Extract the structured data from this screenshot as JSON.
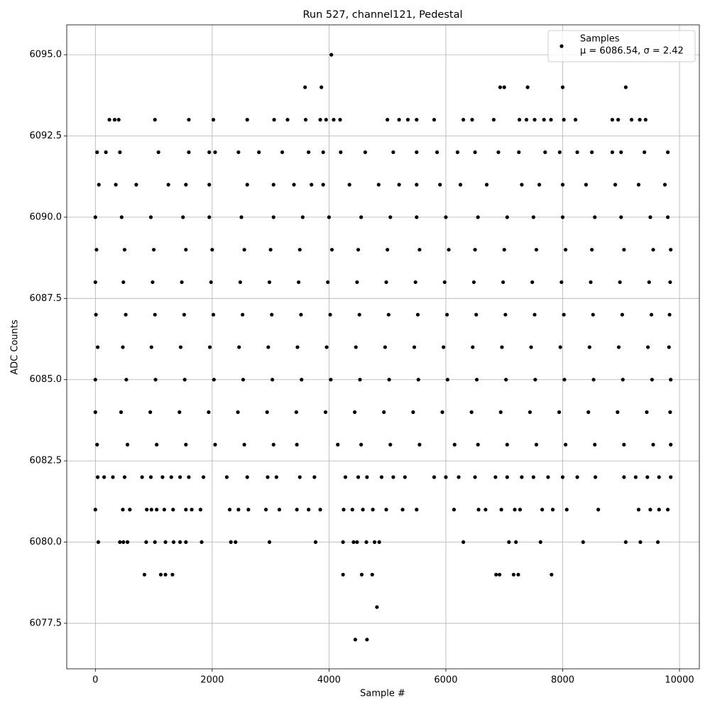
{
  "chart_data": {
    "type": "scatter",
    "title": "Run 527, channel121, Pedestal",
    "x_label": "Sample #",
    "y_label": "ADC Counts",
    "xlim": [
      -490,
      10340
    ],
    "ylim": [
      6076.1,
      6095.92
    ],
    "xticks": [
      0,
      2000,
      4000,
      6000,
      8000,
      10000
    ],
    "yticks": [
      {
        "value": 6077.5,
        "label": "6077.5"
      },
      {
        "value": 6080,
        "label": "6080.0"
      },
      {
        "value": 6082.5,
        "label": "6082.5"
      },
      {
        "value": 6085,
        "label": "6085.0"
      },
      {
        "value": 6087.5,
        "label": "6087.5"
      },
      {
        "value": 6090,
        "label": "6090.0"
      },
      {
        "value": 6092.5,
        "label": "6092.5"
      },
      {
        "value": 6095,
        "label": "6095.0"
      }
    ],
    "grid": true,
    "legend": "upper right",
    "legend_note": "μ = 6086.54, σ = 2.42",
    "series": [
      {
        "name": "Samples",
        "color": "#000000",
        "x": [
          4040,
          3590,
          3870,
          6930,
          7000,
          7400,
          8000,
          9080,
          240,
          330,
          400,
          1020,
          1600,
          2020,
          2600,
          3060,
          3290,
          3600,
          3850,
          3950,
          4080,
          4190,
          5000,
          5200,
          5350,
          5500,
          5800,
          6300,
          6450,
          6820,
          7260,
          7380,
          7520,
          7680,
          7800,
          8020,
          8220,
          8850,
          8950,
          9180,
          9320,
          9420,
          30,
          180,
          420,
          1080,
          1600,
          1950,
          2050,
          2450,
          2800,
          3200,
          3650,
          3900,
          4200,
          4620,
          5100,
          5500,
          5850,
          6200,
          6500,
          6900,
          7250,
          7700,
          7950,
          8250,
          8500,
          8850,
          9000,
          9400,
          9800,
          60,
          350,
          700,
          1250,
          1550,
          1950,
          2600,
          3050,
          3400,
          3700,
          3900,
          4350,
          4850,
          5200,
          5500,
          5900,
          6250,
          6700,
          7300,
          7600,
          8000,
          8400,
          8900,
          9300,
          9750,
          0,
          450,
          950,
          1500,
          1950,
          2500,
          3050,
          3550,
          4000,
          4550,
          5050,
          5500,
          6000,
          6550,
          7050,
          7500,
          8000,
          8550,
          9000,
          9500,
          9800,
          20,
          500,
          1000,
          1550,
          2000,
          2550,
          3000,
          3500,
          4050,
          4500,
          5000,
          5550,
          6050,
          6500,
          7000,
          7550,
          8050,
          8500,
          9050,
          9550,
          9850,
          0,
          480,
          980,
          1480,
          1980,
          2480,
          2980,
          3480,
          3980,
          4480,
          4980,
          5480,
          5980,
          6480,
          6980,
          7480,
          7980,
          8480,
          8980,
          9480,
          9840,
          10,
          520,
          1020,
          1520,
          2020,
          2520,
          3020,
          3520,
          4020,
          4520,
          5020,
          5520,
          6020,
          6520,
          7020,
          7520,
          8020,
          8520,
          9020,
          9520,
          9830,
          40,
          470,
          960,
          1460,
          1960,
          2460,
          2960,
          3460,
          3960,
          4460,
          4960,
          5460,
          5960,
          6460,
          6960,
          7460,
          7960,
          8460,
          8960,
          9460,
          9820,
          0,
          530,
          1030,
          1530,
          2030,
          2530,
          3030,
          3530,
          4030,
          4530,
          5030,
          5530,
          6030,
          6530,
          7030,
          7530,
          8030,
          8530,
          9030,
          9530,
          9850,
          0,
          440,
          940,
          1440,
          1940,
          2440,
          2940,
          3440,
          3940,
          4440,
          4940,
          5440,
          5940,
          6440,
          6940,
          7440,
          7940,
          8440,
          8940,
          9440,
          9840,
          30,
          550,
          1050,
          1550,
          2050,
          2550,
          3050,
          3450,
          4150,
          4550,
          5050,
          5550,
          6150,
          6550,
          7050,
          7550,
          8050,
          8550,
          9050,
          9550,
          9850,
          40,
          150,
          300,
          500,
          800,
          950,
          1150,
          1300,
          1450,
          1600,
          1850,
          2250,
          2600,
          2950,
          3100,
          3500,
          3750,
          4280,
          4500,
          4650,
          4900,
          5100,
          5300,
          5800,
          6000,
          6220,
          6500,
          6850,
          7050,
          7300,
          7500,
          7750,
          8000,
          8250,
          8560,
          9050,
          9250,
          9450,
          9650,
          9850,
          0,
          470,
          590,
          880,
          960,
          1050,
          1180,
          1330,
          1550,
          1650,
          1800,
          2300,
          2450,
          2620,
          2920,
          3150,
          3450,
          3650,
          3850,
          4250,
          4400,
          4580,
          4750,
          4980,
          5260,
          5500,
          6140,
          6560,
          6680,
          6950,
          7180,
          7270,
          7650,
          7830,
          8070,
          8610,
          9300,
          9500,
          9650,
          9800,
          50,
          420,
          480,
          550,
          870,
          1020,
          1200,
          1340,
          1450,
          1550,
          1820,
          2320,
          2400,
          2980,
          3770,
          4240,
          4420,
          4480,
          4640,
          4780,
          4860,
          6300,
          7080,
          7200,
          7620,
          8350,
          9080,
          9330,
          9630,
          840,
          1120,
          1200,
          1320,
          4240,
          4560,
          4740,
          6860,
          6920,
          7160,
          7240,
          7810,
          4820,
          4450,
          4650
        ],
        "values": [
          6095,
          6094,
          6094,
          6094,
          6094,
          6094,
          6094,
          6094,
          6093,
          6093,
          6093,
          6093,
          6093,
          6093,
          6093,
          6093,
          6093,
          6093,
          6093,
          6093,
          6093,
          6093,
          6093,
          6093,
          6093,
          6093,
          6093,
          6093,
          6093,
          6093,
          6093,
          6093,
          6093,
          6093,
          6093,
          6093,
          6093,
          6093,
          6093,
          6093,
          6093,
          6093,
          6092,
          6092,
          6092,
          6092,
          6092,
          6092,
          6092,
          6092,
          6092,
          6092,
          6092,
          6092,
          6092,
          6092,
          6092,
          6092,
          6092,
          6092,
          6092,
          6092,
          6092,
          6092,
          6092,
          6092,
          6092,
          6092,
          6092,
          6092,
          6092,
          6091,
          6091,
          6091,
          6091,
          6091,
          6091,
          6091,
          6091,
          6091,
          6091,
          6091,
          6091,
          6091,
          6091,
          6091,
          6091,
          6091,
          6091,
          6091,
          6091,
          6091,
          6091,
          6091,
          6091,
          6091,
          6090,
          6090,
          6090,
          6090,
          6090,
          6090,
          6090,
          6090,
          6090,
          6090,
          6090,
          6090,
          6090,
          6090,
          6090,
          6090,
          6090,
          6090,
          6090,
          6090,
          6090,
          6089,
          6089,
          6089,
          6089,
          6089,
          6089,
          6089,
          6089,
          6089,
          6089,
          6089,
          6089,
          6089,
          6089,
          6089,
          6089,
          6089,
          6089,
          6089,
          6089,
          6089,
          6088,
          6088,
          6088,
          6088,
          6088,
          6088,
          6088,
          6088,
          6088,
          6088,
          6088,
          6088,
          6088,
          6088,
          6088,
          6088,
          6088,
          6088,
          6088,
          6088,
          6088,
          6087,
          6087,
          6087,
          6087,
          6087,
          6087,
          6087,
          6087,
          6087,
          6087,
          6087,
          6087,
          6087,
          6087,
          6087,
          6087,
          6087,
          6087,
          6087,
          6087,
          6087,
          6086,
          6086,
          6086,
          6086,
          6086,
          6086,
          6086,
          6086,
          6086,
          6086,
          6086,
          6086,
          6086,
          6086,
          6086,
          6086,
          6086,
          6086,
          6086,
          6086,
          6086,
          6085,
          6085,
          6085,
          6085,
          6085,
          6085,
          6085,
          6085,
          6085,
          6085,
          6085,
          6085,
          6085,
          6085,
          6085,
          6085,
          6085,
          6085,
          6085,
          6085,
          6085,
          6084,
          6084,
          6084,
          6084,
          6084,
          6084,
          6084,
          6084,
          6084,
          6084,
          6084,
          6084,
          6084,
          6084,
          6084,
          6084,
          6084,
          6084,
          6084,
          6084,
          6084,
          6083,
          6083,
          6083,
          6083,
          6083,
          6083,
          6083,
          6083,
          6083,
          6083,
          6083,
          6083,
          6083,
          6083,
          6083,
          6083,
          6083,
          6083,
          6083,
          6083,
          6083,
          6082,
          6082,
          6082,
          6082,
          6082,
          6082,
          6082,
          6082,
          6082,
          6082,
          6082,
          6082,
          6082,
          6082,
          6082,
          6082,
          6082,
          6082,
          6082,
          6082,
          6082,
          6082,
          6082,
          6082,
          6082,
          6082,
          6082,
          6082,
          6082,
          6082,
          6082,
          6082,
          6082,
          6082,
          6082,
          6082,
          6082,
          6082,
          6082,
          6082,
          6081,
          6081,
          6081,
          6081,
          6081,
          6081,
          6081,
          6081,
          6081,
          6081,
          6081,
          6081,
          6081,
          6081,
          6081,
          6081,
          6081,
          6081,
          6081,
          6081,
          6081,
          6081,
          6081,
          6081,
          6081,
          6081,
          6081,
          6081,
          6081,
          6081,
          6081,
          6081,
          6081,
          6081,
          6081,
          6081,
          6081,
          6081,
          6081,
          6081,
          6080,
          6080,
          6080,
          6080,
          6080,
          6080,
          6080,
          6080,
          6080,
          6080,
          6080,
          6080,
          6080,
          6080,
          6080,
          6080,
          6080,
          6080,
          6080,
          6080,
          6080,
          6080,
          6080,
          6080,
          6080,
          6080,
          6080,
          6080,
          6080,
          6079,
          6079,
          6079,
          6079,
          6079,
          6079,
          6079,
          6079,
          6079,
          6079,
          6079,
          6079,
          6078,
          6077,
          6077
        ]
      }
    ]
  }
}
